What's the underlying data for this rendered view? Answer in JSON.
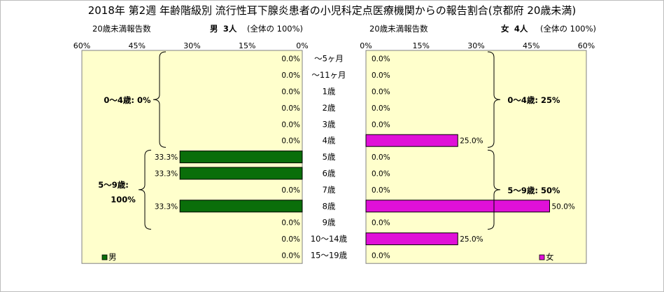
{
  "title": "2018年 第2週 年齢階級別 流行性耳下腺炎患者の小児科定点医療機関からの報告割合(京都府 20歳未満)",
  "left_header": {
    "report_count_label": "20歳未満報告数",
    "sex": "男",
    "count": "3人",
    "share": "(全体の 100%)"
  },
  "right_header": {
    "report_count_label": "20歳未満報告数",
    "sex": "女",
    "count": "4人",
    "share": "(全体の 100%)"
  },
  "colors": {
    "male": "#0a6e0a",
    "female": "#e010d8",
    "plot_bg": "#ffffcc"
  },
  "chart_data": [
    {
      "type": "bar",
      "orientation": "horizontal",
      "direction": "right-to-left",
      "categories": [
        "〜5ヶ月",
        "〜11ヶ月",
        "1歳",
        "2歳",
        "3歳",
        "4歳",
        "5歳",
        "6歳",
        "7歳",
        "8歳",
        "9歳",
        "10〜14歳",
        "15〜19歳"
      ],
      "series": [
        {
          "name": "男",
          "values": [
            0.0,
            0.0,
            0.0,
            0.0,
            0.0,
            0.0,
            33.3,
            33.3,
            0.0,
            33.3,
            0.0,
            0.0,
            0.0
          ]
        }
      ],
      "data_labels": [
        "0.0%",
        "0.0%",
        "0.0%",
        "0.0%",
        "0.0%",
        "0.0%",
        "33.3%",
        "33.3%",
        "0.0%",
        "33.3%",
        "0.0%",
        "0.0%",
        "0.0%"
      ],
      "xlim": [
        0,
        60
      ],
      "x_ticks": [
        "60%",
        "45%",
        "30%",
        "15%",
        "0%"
      ],
      "legend": "bottom-left",
      "grid": false,
      "annotations": [
        {
          "text": "0〜4歳: 0%",
          "from": "〜5ヶ月",
          "to": "4歳"
        },
        {
          "text": "5〜9歳:",
          "text2": "100%",
          "from": "5歳",
          "to": "9歳"
        }
      ]
    },
    {
      "type": "bar",
      "orientation": "horizontal",
      "direction": "left-to-right",
      "categories": [
        "〜5ヶ月",
        "〜11ヶ月",
        "1歳",
        "2歳",
        "3歳",
        "4歳",
        "5歳",
        "6歳",
        "7歳",
        "8歳",
        "9歳",
        "10〜14歳",
        "15〜19歳"
      ],
      "series": [
        {
          "name": "女",
          "values": [
            0.0,
            0.0,
            0.0,
            0.0,
            0.0,
            25.0,
            0.0,
            0.0,
            0.0,
            50.0,
            0.0,
            25.0,
            0.0
          ]
        }
      ],
      "data_labels": [
        "0.0%",
        "0.0%",
        "0.0%",
        "0.0%",
        "0.0%",
        "25.0%",
        "0.0%",
        "0.0%",
        "0.0%",
        "50.0%",
        "0.0%",
        "25.0%",
        "0.0%"
      ],
      "xlim": [
        0,
        60
      ],
      "x_ticks": [
        "0%",
        "15%",
        "30%",
        "45%",
        "60%"
      ],
      "legend": "bottom-right",
      "grid": false,
      "annotations": [
        {
          "text": "0〜4歳: 25%",
          "from": "〜5ヶ月",
          "to": "4歳"
        },
        {
          "text": "5〜9歳: 50%",
          "from": "5歳",
          "to": "9歳"
        }
      ]
    }
  ]
}
